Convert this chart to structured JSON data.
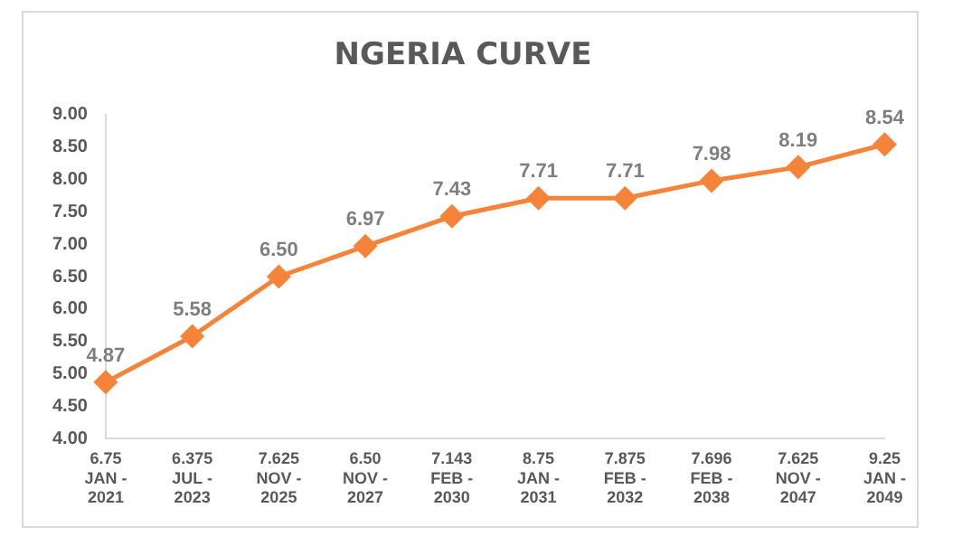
{
  "chart_data": {
    "type": "line",
    "title": "NGERIA CURVE",
    "categories": [
      "6.75\nJAN -\n2021",
      "6.375\nJUL -\n2023",
      "7.625\nNOV -\n2025",
      "6.50\nNOV -\n2027",
      "7.143\nFEB -\n2030",
      "8.75\nJAN -\n2031",
      "7.875\nFEB -\n2032",
      "7.696\nFEB -\n2038",
      "7.625\nNOV -\n2047",
      "9.25\nJAN -\n2049"
    ],
    "series": [
      {
        "color": "#f5843a",
        "values": [
          4.87,
          5.58,
          6.5,
          6.97,
          7.43,
          7.71,
          7.71,
          7.98,
          8.19,
          8.54
        ],
        "value_labels": [
          "4.87",
          "5.58",
          "6.50",
          "6.97",
          "7.43",
          "7.71",
          "7.71",
          "7.98",
          "8.19",
          "8.54"
        ]
      }
    ],
    "ylim": [
      4,
      9
    ],
    "yticks": [
      {
        "value": 4,
        "label": "4.00"
      },
      {
        "value": 4.5,
        "label": "4.50"
      },
      {
        "value": 5,
        "label": "5.00"
      },
      {
        "value": 5.5,
        "label": "5.50"
      },
      {
        "value": 6,
        "label": "6.00"
      },
      {
        "value": 6.5,
        "label": "6.50"
      },
      {
        "value": 7,
        "label": "7.00"
      },
      {
        "value": 7.5,
        "label": "7.50"
      },
      {
        "value": 8,
        "label": "8.00"
      },
      {
        "value": 8.5,
        "label": "8.50"
      },
      {
        "value": 9,
        "label": "9.00"
      }
    ],
    "marker": "diamond",
    "line_style": "solid",
    "legend": false,
    "grid": false
  }
}
